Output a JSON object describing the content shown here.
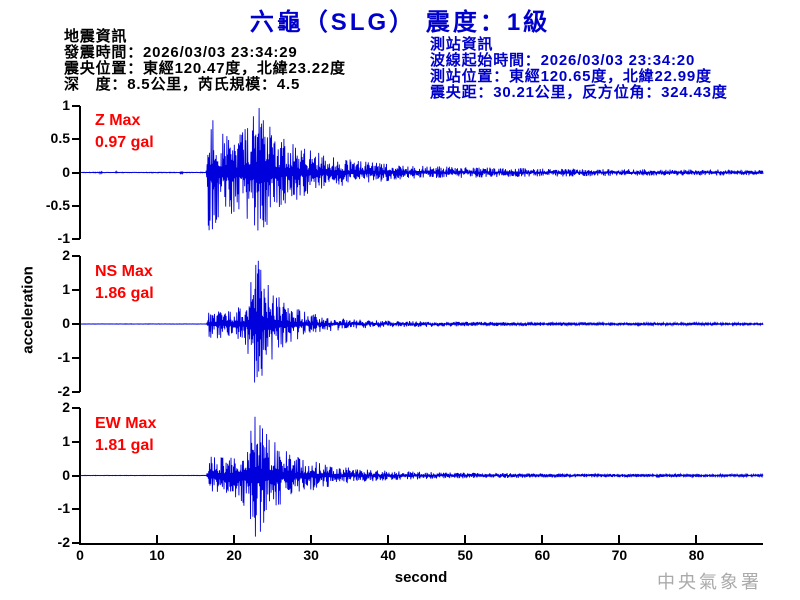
{
  "title": "六龜（SLG） 震度：1級",
  "watermark": "中央氣象署",
  "colors": {
    "title_blue": "#0000cc",
    "station_info_blue": "#0000cc",
    "waveform_blue": "#0000dd",
    "max_label_red": "#ff0000",
    "axis_black": "#000000",
    "watermark_gray": "#aaaaaa"
  },
  "earthquake_info": {
    "heading": "地震資訊",
    "lines": [
      "發震時間：2026/03/03 23:34:29",
      "震央位置：東經120.47度，北緯23.22度",
      "深　度：8.5公里，芮氏規模：4.5"
    ]
  },
  "station_info": {
    "heading": "測站資訊",
    "lines": [
      "波線起始時間：2026/03/03 23:34:20",
      "測站位置：東經120.65度，北緯22.99度",
      "震央距：30.21公里，反方位角：324.43度"
    ]
  },
  "chart_data": {
    "type": "line",
    "xlabel": "second",
    "ylabel": "acceleration",
    "xlim": [
      0,
      88.5
    ],
    "xticks": [
      0,
      10,
      20,
      30,
      40,
      50,
      60,
      70,
      80
    ],
    "grid": false,
    "legend": "none",
    "description": "Three-component strong-motion accelerogram; P-wave onset ~16.5 s, S-wave peak ~22.7 s",
    "panels": [
      {
        "channel": "Z",
        "channel_label": "Z Max",
        "max_label": "0.97 gal",
        "max_gal": 0.97,
        "ylim": [
          -1,
          1
        ],
        "yticks": [
          1,
          0.5,
          0,
          -0.5,
          -1
        ],
        "p_onset_s": 16.5,
        "s_peak_s": 22.9,
        "envelope": [
          [
            0,
            0.004
          ],
          [
            2.4,
            0.004
          ],
          [
            2.6,
            0.035
          ],
          [
            2.8,
            0.004
          ],
          [
            4.4,
            0.004
          ],
          [
            4.6,
            0.03
          ],
          [
            4.8,
            0.004
          ],
          [
            12.8,
            0.004
          ],
          [
            13.0,
            0.035
          ],
          [
            13.3,
            0.004
          ],
          [
            16.2,
            0.004
          ],
          [
            16.5,
            0.7
          ],
          [
            16.9,
            0.92
          ],
          [
            17.6,
            0.62
          ],
          [
            18.5,
            0.5
          ],
          [
            19.5,
            0.55
          ],
          [
            20.5,
            0.5
          ],
          [
            21.5,
            0.6
          ],
          [
            22.4,
            0.75
          ],
          [
            22.9,
            0.97
          ],
          [
            23.6,
            0.8
          ],
          [
            24.5,
            0.62
          ],
          [
            25.5,
            0.5
          ],
          [
            27,
            0.4
          ],
          [
            29,
            0.32
          ],
          [
            31,
            0.26
          ],
          [
            33,
            0.21
          ],
          [
            35,
            0.17
          ],
          [
            38,
            0.13
          ],
          [
            41,
            0.1
          ],
          [
            45,
            0.085
          ],
          [
            50,
            0.07
          ],
          [
            55,
            0.06
          ],
          [
            60,
            0.055
          ],
          [
            65,
            0.05
          ],
          [
            70,
            0.045
          ],
          [
            75,
            0.04
          ],
          [
            80,
            0.04
          ],
          [
            88.5,
            0.035
          ]
        ]
      },
      {
        "channel": "NS",
        "channel_label": "NS Max",
        "max_label": "1.86 gal",
        "max_gal": 1.86,
        "ylim": [
          -2,
          2
        ],
        "yticks": [
          2,
          1,
          0,
          -1,
          -2
        ],
        "p_onset_s": 16.5,
        "s_peak_s": 22.6,
        "envelope": [
          [
            0,
            0.005
          ],
          [
            16.3,
            0.005
          ],
          [
            16.6,
            0.3
          ],
          [
            17.5,
            0.35
          ],
          [
            18.5,
            0.3
          ],
          [
            19.5,
            0.32
          ],
          [
            20.5,
            0.38
          ],
          [
            21.4,
            0.5
          ],
          [
            22.0,
            0.9
          ],
          [
            22.6,
            1.86
          ],
          [
            23.1,
            1.45
          ],
          [
            23.7,
            1.15
          ],
          [
            24.4,
            0.9
          ],
          [
            25.2,
            0.7
          ],
          [
            26,
            0.55
          ],
          [
            27,
            0.42
          ],
          [
            28.5,
            0.32
          ],
          [
            30,
            0.24
          ],
          [
            32,
            0.17
          ],
          [
            34,
            0.13
          ],
          [
            36,
            0.1
          ],
          [
            39,
            0.08
          ],
          [
            42,
            0.07
          ],
          [
            46,
            0.06
          ],
          [
            50,
            0.05
          ],
          [
            56,
            0.045
          ],
          [
            62,
            0.04
          ],
          [
            70,
            0.035
          ],
          [
            80,
            0.03
          ],
          [
            88.5,
            0.03
          ]
        ]
      },
      {
        "channel": "EW",
        "channel_label": "EW Max",
        "max_label": "1.81 gal",
        "max_gal": 1.81,
        "ylim": [
          -2,
          2
        ],
        "yticks": [
          2,
          1,
          0,
          -1,
          -2
        ],
        "p_onset_s": 16.5,
        "s_peak_s": 22.4,
        "envelope": [
          [
            0,
            0.005
          ],
          [
            16.3,
            0.005
          ],
          [
            16.6,
            0.4
          ],
          [
            17.4,
            0.5
          ],
          [
            18.2,
            0.42
          ],
          [
            19,
            0.46
          ],
          [
            20,
            0.5
          ],
          [
            21,
            0.65
          ],
          [
            21.8,
            1.1
          ],
          [
            22.4,
            1.81
          ],
          [
            23,
            1.45
          ],
          [
            23.7,
            1.1
          ],
          [
            24.5,
            0.9
          ],
          [
            25.5,
            0.75
          ],
          [
            26.5,
            0.6
          ],
          [
            28,
            0.48
          ],
          [
            29.5,
            0.38
          ],
          [
            31,
            0.3
          ],
          [
            33,
            0.23
          ],
          [
            35,
            0.18
          ],
          [
            37,
            0.14
          ],
          [
            40,
            0.11
          ],
          [
            44,
            0.09
          ],
          [
            48,
            0.07
          ],
          [
            53,
            0.06
          ],
          [
            60,
            0.05
          ],
          [
            68,
            0.04
          ],
          [
            78,
            0.035
          ],
          [
            88.5,
            0.03
          ]
        ]
      }
    ]
  }
}
